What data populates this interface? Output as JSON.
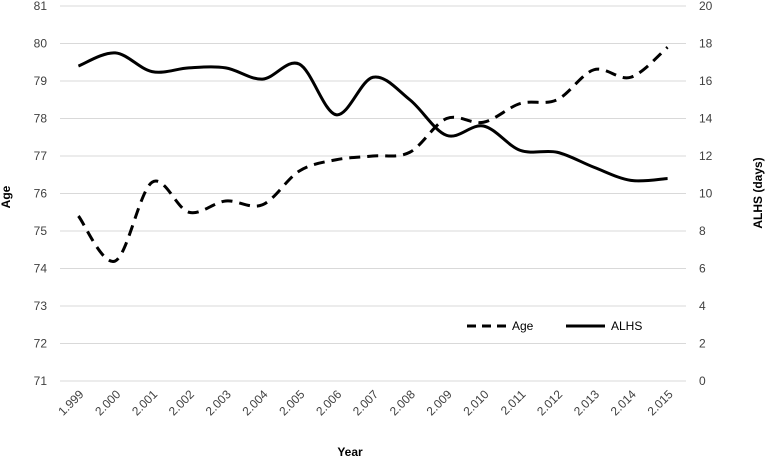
{
  "chart_data": {
    "type": "line",
    "xlabel": "Year",
    "ylabel_left": "Age",
    "ylabel_right": "ALHS (days)",
    "categories": [
      "1.999",
      "2.000",
      "2.001",
      "2.002",
      "2.003",
      "2.004",
      "2.005",
      "2.006",
      "2.007",
      "2.008",
      "2.009",
      "2.010",
      "2.011",
      "2.012",
      "2.013",
      "2.014",
      "2.015"
    ],
    "left_axis": {
      "min": 71,
      "max": 81,
      "ticks": [
        "71",
        "72",
        "73",
        "74",
        "75",
        "76",
        "77",
        "78",
        "79",
        "80",
        "81"
      ]
    },
    "right_axis": {
      "min": 0,
      "max": 20,
      "ticks": [
        "0",
        "2",
        "4",
        "6",
        "8",
        "10",
        "12",
        "14",
        "16",
        "18",
        "20"
      ]
    },
    "grid": true,
    "legend_position": "bottom-right, inside plot",
    "series": [
      {
        "name": "Age",
        "axis": "left",
        "style": "dashed",
        "color": "#000000",
        "values": [
          75.4,
          74.2,
          76.3,
          75.5,
          75.8,
          75.7,
          76.6,
          76.9,
          77.0,
          77.1,
          78.0,
          77.9,
          78.4,
          78.5,
          79.3,
          79.1,
          79.9
        ]
      },
      {
        "name": "ALHS",
        "axis": "right",
        "style": "solid",
        "color": "#000000",
        "values": [
          16.8,
          17.5,
          16.5,
          16.7,
          16.7,
          16.1,
          16.9,
          14.2,
          16.2,
          15.0,
          13.1,
          13.6,
          12.3,
          12.2,
          11.4,
          10.7,
          10.8
        ]
      }
    ]
  }
}
